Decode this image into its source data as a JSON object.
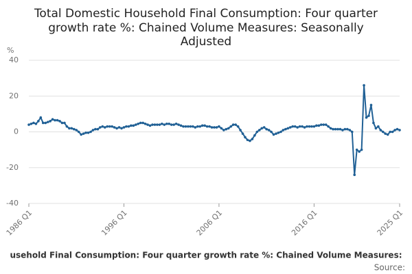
{
  "chart_data": {
    "type": "line",
    "title": [
      "Total Domestic Household Final Consumption: Four quarter",
      "growth rate %: Chained Volume Measures: Seasonally",
      "Adjusted"
    ],
    "y_label": "%",
    "legend_text": "usehold Final Consumption: Four quarter growth rate %: Chained Volume Measures:",
    "source": "Source:",
    "ylim": [
      -40,
      40
    ],
    "yticks": [
      -40,
      -20,
      0,
      20,
      40
    ],
    "grid": true,
    "categories": [
      "1986 Q1",
      null,
      null,
      null,
      null,
      null,
      null,
      null,
      null,
      null,
      null,
      null,
      null,
      null,
      null,
      null,
      null,
      null,
      null,
      null,
      null,
      null,
      null,
      null,
      null,
      null,
      null,
      null,
      null,
      null,
      null,
      null,
      null,
      null,
      null,
      null,
      null,
      null,
      null,
      null,
      "1996 Q1",
      null,
      null,
      null,
      null,
      null,
      null,
      null,
      null,
      null,
      null,
      null,
      null,
      null,
      null,
      null,
      null,
      null,
      null,
      null,
      null,
      null,
      null,
      null,
      null,
      null,
      null,
      null,
      null,
      null,
      null,
      null,
      null,
      null,
      null,
      null,
      null,
      null,
      null,
      null,
      "2006 Q1",
      null,
      null,
      null,
      null,
      null,
      null,
      null,
      null,
      null,
      null,
      null,
      null,
      null,
      null,
      null,
      null,
      null,
      null,
      null,
      null,
      null,
      null,
      null,
      null,
      null,
      null,
      null,
      null,
      null,
      null,
      null,
      null,
      null,
      null,
      null,
      null,
      null,
      null,
      null,
      "2016 Q1",
      null,
      null,
      null,
      null,
      null,
      null,
      null,
      null,
      null,
      null,
      null,
      null,
      null,
      null,
      null,
      null,
      null,
      null,
      null,
      null,
      null,
      null,
      null,
      null,
      null,
      null,
      null,
      null,
      null,
      null,
      null,
      null,
      null,
      null,
      null,
      "2025 Q1"
    ],
    "series": [
      {
        "name": "Total Domestic Household Final Consumption: Four quarter growth rate %: Chained Volume Measures: Seasonally Adjusted",
        "color": "#206095",
        "values": [
          4,
          4.5,
          5,
          4.5,
          6,
          8,
          5,
          5,
          5.5,
          6,
          7,
          6.5,
          6.5,
          6,
          5,
          5,
          3,
          2,
          2,
          1.5,
          1,
          0,
          -1.5,
          -1,
          -0.5,
          -0.5,
          0,
          1,
          1.5,
          1.5,
          2.5,
          3,
          2.5,
          3,
          3,
          3,
          2.5,
          2,
          2.5,
          2,
          2.5,
          3,
          3,
          3.5,
          3.5,
          4,
          4.5,
          5,
          5,
          4.5,
          4,
          3.5,
          4,
          4,
          4,
          4,
          4.5,
          4,
          4.5,
          4.5,
          4,
          4,
          4.5,
          4,
          3.5,
          3,
          3,
          3,
          3,
          3,
          2.5,
          3,
          3,
          3.5,
          3.5,
          3,
          3,
          2.5,
          2.5,
          2.5,
          3,
          2,
          1,
          1.5,
          2,
          3,
          4,
          4,
          3,
          1,
          -1,
          -3,
          -4.5,
          -5,
          -4,
          -2,
          0,
          1,
          2,
          2.5,
          1.5,
          1,
          0,
          -1.5,
          -1,
          -0.5,
          0,
          1,
          1.5,
          2,
          2.5,
          3,
          3,
          2.5,
          3,
          3,
          2.5,
          3,
          3,
          3,
          3,
          3.5,
          3.5,
          4,
          4,
          4,
          3,
          2,
          1.5,
          1.5,
          1.5,
          1.5,
          1,
          1.5,
          1.5,
          1,
          0,
          -24,
          -10,
          -11,
          -10,
          26,
          8,
          9,
          15,
          5,
          2,
          3,
          1,
          0,
          -1,
          -1.5,
          0,
          0,
          1,
          1.5,
          1
        ]
      }
    ]
  }
}
